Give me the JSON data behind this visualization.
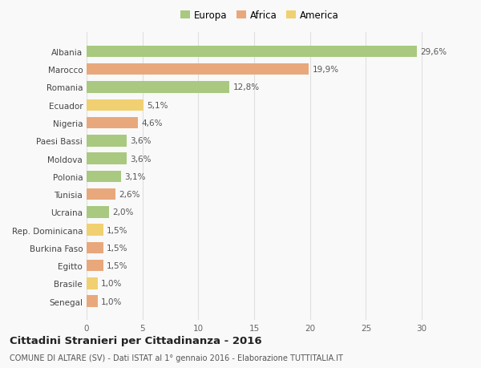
{
  "categories": [
    "Albania",
    "Marocco",
    "Romania",
    "Ecuador",
    "Nigeria",
    "Paesi Bassi",
    "Moldova",
    "Polonia",
    "Tunisia",
    "Ucraina",
    "Rep. Dominicana",
    "Burkina Faso",
    "Egitto",
    "Brasile",
    "Senegal"
  ],
  "values": [
    29.6,
    19.9,
    12.8,
    5.1,
    4.6,
    3.6,
    3.6,
    3.1,
    2.6,
    2.0,
    1.5,
    1.5,
    1.5,
    1.0,
    1.0
  ],
  "labels": [
    "29,6%",
    "19,9%",
    "12,8%",
    "5,1%",
    "4,6%",
    "3,6%",
    "3,6%",
    "3,1%",
    "2,6%",
    "2,0%",
    "1,5%",
    "1,5%",
    "1,5%",
    "1,0%",
    "1,0%"
  ],
  "continents": [
    "Europa",
    "Africa",
    "Europa",
    "America",
    "Africa",
    "Europa",
    "Europa",
    "Europa",
    "Africa",
    "Europa",
    "America",
    "Africa",
    "Africa",
    "America",
    "Africa"
  ],
  "colors": {
    "Europa": "#a8c97f",
    "Africa": "#e8a87c",
    "America": "#f0d070"
  },
  "title": "Cittadini Stranieri per Cittadinanza - 2016",
  "subtitle": "COMUNE DI ALTARE (SV) - Dati ISTAT al 1° gennaio 2016 - Elaborazione TUTTITALIA.IT",
  "xlim": [
    0,
    31
  ],
  "xticks": [
    0,
    5,
    10,
    15,
    20,
    25,
    30
  ],
  "bg_color": "#f9f9f9",
  "grid_color": "#e0e0e0",
  "bar_height": 0.65,
  "label_fontsize": 7.5,
  "tick_fontsize": 7.5,
  "title_fontsize": 9.5,
  "subtitle_fontsize": 7.0,
  "legend_fontsize": 8.5
}
